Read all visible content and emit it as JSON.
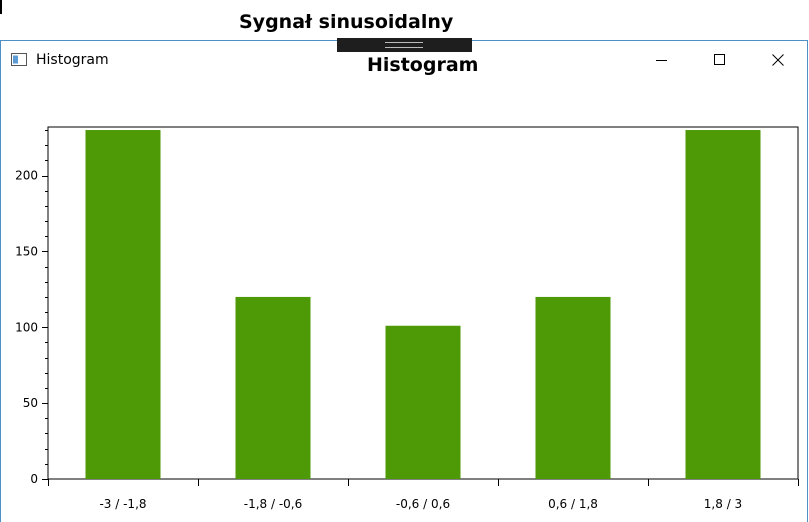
{
  "background_window": {
    "title": "Sygnał sinusoidalny"
  },
  "window": {
    "title": "Histogram",
    "icon": "app-window-icon",
    "controls": {
      "minimize_icon": "minimize-icon",
      "maximize_icon": "maximize-icon",
      "close_icon": "close-icon"
    }
  },
  "colors": {
    "bar": "#4e9a06",
    "window_border": "#4d90c8"
  },
  "chart_data": {
    "type": "bar",
    "title": "Histogram",
    "categories": [
      "-3 / -1,8",
      "-1,8 / -0,6",
      "-0,6 / 0,6",
      "0,6 / 1,8",
      "1,8 / 3"
    ],
    "values": [
      230,
      120,
      101,
      120,
      230
    ],
    "ylim": [
      0,
      232
    ],
    "yticks": [
      0,
      50,
      100,
      150,
      200
    ],
    "xlabel": "",
    "ylabel": "",
    "grid": false,
    "legend": "none"
  }
}
